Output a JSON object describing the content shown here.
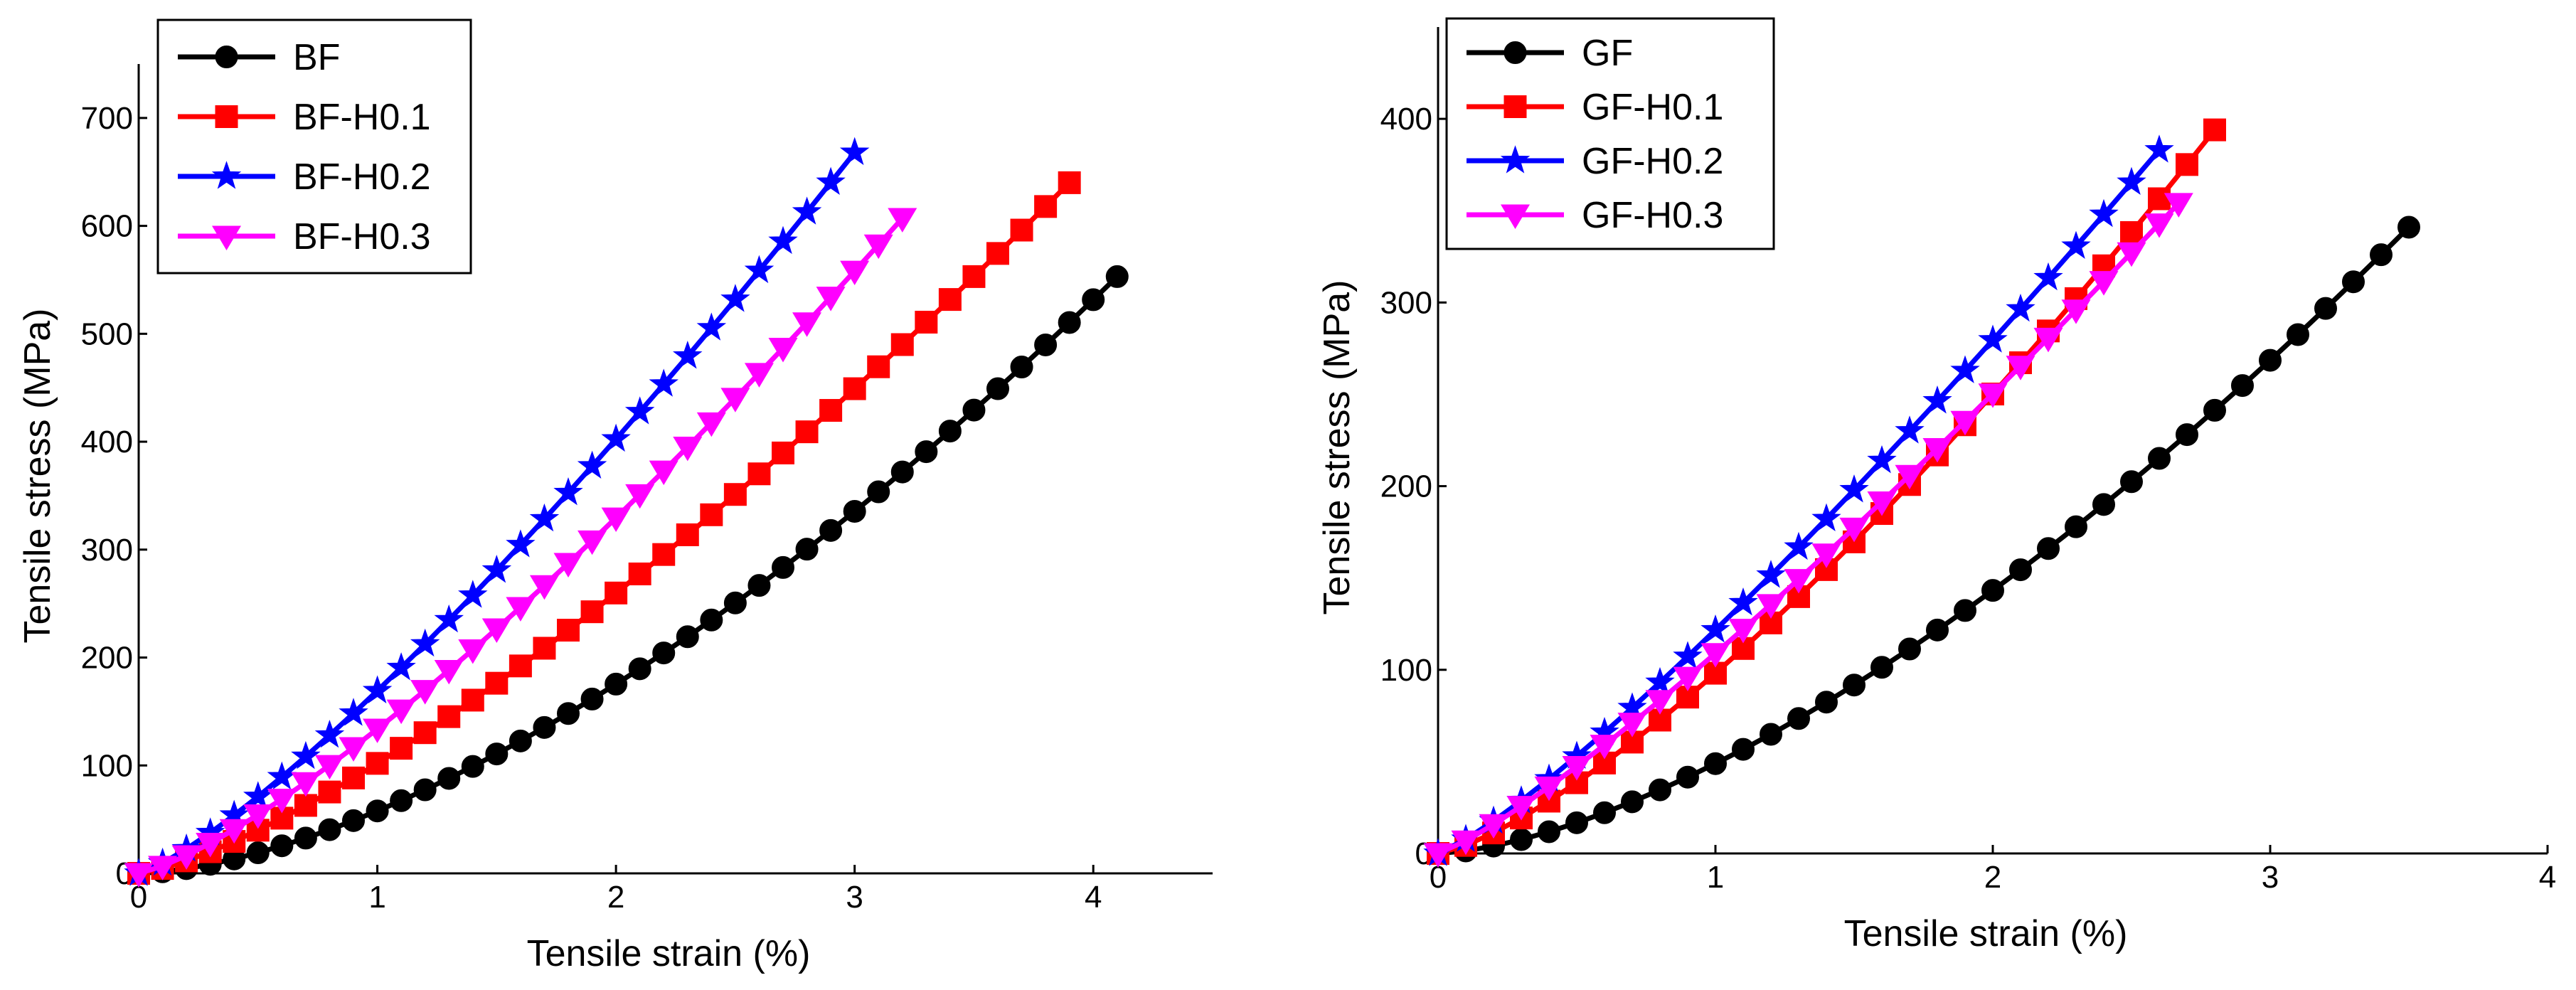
{
  "chart_data": [
    {
      "type": "line",
      "xlabel": "Tensile strain (%)",
      "ylabel": "Tensile stress (MPa)",
      "xlim": [
        0,
        4.5
      ],
      "ylim": [
        0,
        750
      ],
      "xticks": [
        0,
        1,
        2,
        3,
        4
      ],
      "yticks": [
        0,
        100,
        200,
        300,
        400,
        500,
        600,
        700
      ],
      "legend_position": "top-left",
      "series": [
        {
          "name": "BF",
          "color": "#000000",
          "marker": "circle",
          "x_max": 4.1,
          "y_max": 553,
          "curvature": 1.6
        },
        {
          "name": "BF-H0.1",
          "color": "#ff0000",
          "marker": "square",
          "x_max": 3.9,
          "y_max": 640,
          "curvature": 1.35
        },
        {
          "name": "BF-H0.2",
          "color": "#0000ff",
          "marker": "star",
          "x_max": 3.0,
          "y_max": 668,
          "curvature": 1.25
        },
        {
          "name": "BF-H0.3",
          "color": "#ff00ff",
          "marker": "triangle-down",
          "x_max": 3.2,
          "y_max": 607,
          "curvature": 1.3
        }
      ]
    },
    {
      "type": "line",
      "xlabel": "Tensile strain (%)",
      "ylabel": "Tensile stress (MPa)",
      "xlim": [
        0,
        4
      ],
      "ylim": [
        0,
        450
      ],
      "xticks": [
        0,
        1,
        2,
        3,
        4
      ],
      "yticks": [
        0,
        100,
        200,
        300,
        400
      ],
      "legend_position": "top-left",
      "series": [
        {
          "name": "GF",
          "color": "#000000",
          "marker": "circle",
          "x_max": 3.5,
          "y_max": 341,
          "curvature": 1.55
        },
        {
          "name": "GF-H0.1",
          "color": "#ff0000",
          "marker": "square",
          "x_max": 2.8,
          "y_max": 394,
          "curvature": 1.35
        },
        {
          "name": "GF-H0.2",
          "color": "#0000ff",
          "marker": "star",
          "x_max": 2.6,
          "y_max": 383,
          "curvature": 1.2
        },
        {
          "name": "GF-H0.3",
          "color": "#ff00ff",
          "marker": "triangle-down",
          "x_max": 2.67,
          "y_max": 354,
          "curvature": 1.2
        }
      ]
    }
  ]
}
